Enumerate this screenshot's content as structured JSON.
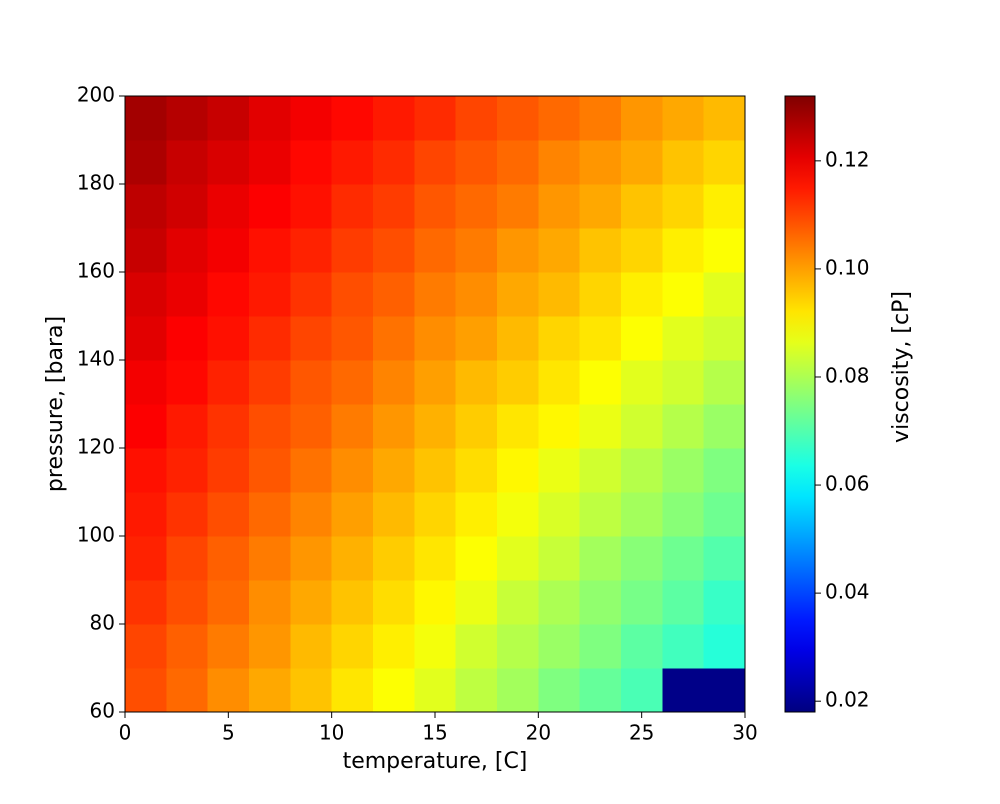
{
  "chart_data": {
    "type": "heatmap",
    "colormap": "jet",
    "xlabel": "temperature, [C]",
    "ylabel": "pressure, [bara]",
    "colorbar_label": "viscosity, [cP]",
    "xlim": [
      0,
      30
    ],
    "ylim": [
      60,
      200
    ],
    "xticks": [
      0,
      5,
      10,
      15,
      20,
      25,
      30
    ],
    "yticks": [
      60,
      80,
      100,
      120,
      140,
      160,
      180,
      200
    ],
    "x_edges": [
      0,
      2,
      4,
      6,
      8,
      10,
      12,
      14,
      16,
      18,
      20,
      22,
      24,
      26,
      28,
      30
    ],
    "y_edges": [
      60,
      70,
      80,
      90,
      100,
      110,
      120,
      130,
      140,
      150,
      160,
      170,
      180,
      190,
      200
    ],
    "z": [
      [
        0.109,
        0.106,
        0.102,
        0.099,
        0.096,
        0.092,
        0.089,
        0.086,
        0.082,
        0.079,
        0.075,
        0.072,
        0.069,
        0.019,
        0.019
      ],
      [
        0.11,
        0.107,
        0.104,
        0.101,
        0.097,
        0.094,
        0.091,
        0.088,
        0.084,
        0.081,
        0.078,
        0.075,
        0.071,
        0.068,
        0.065
      ],
      [
        0.112,
        0.109,
        0.106,
        0.102,
        0.099,
        0.096,
        0.093,
        0.09,
        0.087,
        0.083,
        0.08,
        0.077,
        0.074,
        0.071,
        0.067
      ],
      [
        0.114,
        0.11,
        0.107,
        0.104,
        0.101,
        0.098,
        0.095,
        0.092,
        0.089,
        0.086,
        0.083,
        0.079,
        0.076,
        0.073,
        0.07
      ],
      [
        0.115,
        0.112,
        0.109,
        0.106,
        0.103,
        0.1,
        0.097,
        0.094,
        0.091,
        0.088,
        0.085,
        0.082,
        0.079,
        0.076,
        0.073
      ],
      [
        0.116,
        0.114,
        0.111,
        0.108,
        0.105,
        0.102,
        0.099,
        0.096,
        0.093,
        0.09,
        0.087,
        0.084,
        0.081,
        0.078,
        0.075
      ],
      [
        0.118,
        0.115,
        0.112,
        0.109,
        0.107,
        0.104,
        0.101,
        0.098,
        0.095,
        0.092,
        0.09,
        0.087,
        0.084,
        0.081,
        0.078
      ],
      [
        0.119,
        0.117,
        0.114,
        0.111,
        0.108,
        0.106,
        0.103,
        0.1,
        0.097,
        0.095,
        0.092,
        0.089,
        0.086,
        0.084,
        0.081
      ],
      [
        0.121,
        0.118,
        0.116,
        0.113,
        0.11,
        0.108,
        0.105,
        0.102,
        0.1,
        0.097,
        0.094,
        0.092,
        0.089,
        0.086,
        0.084
      ],
      [
        0.122,
        0.12,
        0.117,
        0.115,
        0.112,
        0.109,
        0.107,
        0.104,
        0.102,
        0.099,
        0.097,
        0.094,
        0.091,
        0.089,
        0.086
      ],
      [
        0.124,
        0.121,
        0.119,
        0.116,
        0.114,
        0.111,
        0.109,
        0.106,
        0.104,
        0.101,
        0.099,
        0.096,
        0.094,
        0.091,
        0.089
      ],
      [
        0.125,
        0.123,
        0.12,
        0.118,
        0.116,
        0.113,
        0.111,
        0.108,
        0.106,
        0.104,
        0.101,
        0.099,
        0.096,
        0.094,
        0.091
      ],
      [
        0.127,
        0.124,
        0.122,
        0.12,
        0.117,
        0.115,
        0.113,
        0.11,
        0.108,
        0.106,
        0.103,
        0.101,
        0.099,
        0.096,
        0.094
      ],
      [
        0.128,
        0.126,
        0.124,
        0.121,
        0.119,
        0.117,
        0.115,
        0.113,
        0.11,
        0.108,
        0.106,
        0.104,
        0.101,
        0.099,
        0.097
      ]
    ],
    "vlim": [
      0.018,
      0.132
    ],
    "cticks": [
      {
        "value": 0.02,
        "label": "0.02"
      },
      {
        "value": 0.04,
        "label": "0.04"
      },
      {
        "value": 0.06,
        "label": "0.06"
      },
      {
        "value": 0.08,
        "label": "0.08"
      },
      {
        "value": 0.1,
        "label": "0.10"
      },
      {
        "value": 0.12,
        "label": "0.12"
      }
    ]
  }
}
